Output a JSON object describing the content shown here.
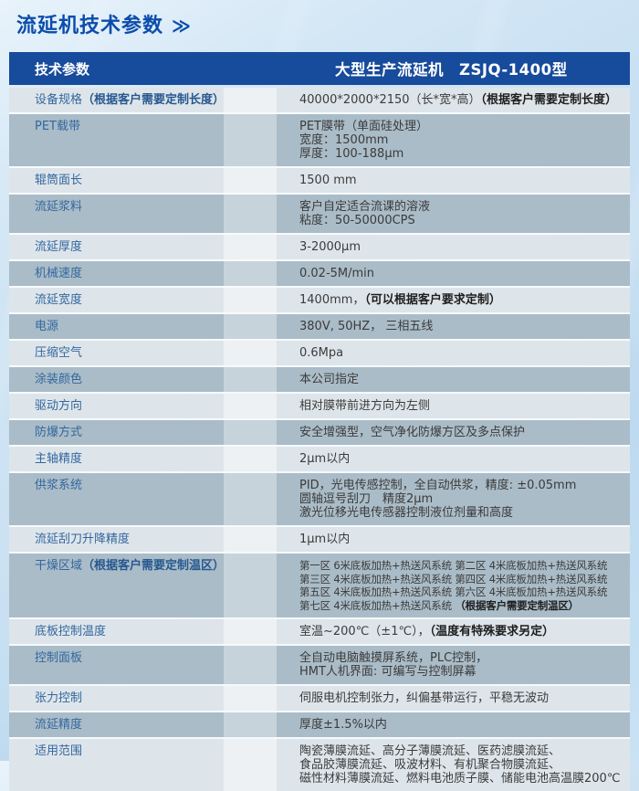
{
  "page_title": {
    "text": "流延机技术参数",
    "arrow": "≫"
  },
  "colors": {
    "header_bg": "#174b9b",
    "title_blue": "#0b4dab",
    "label_blue": "#33679f",
    "row_dark": "#aabcc7",
    "row_light": "#dee5ea",
    "page_bg": "#c6dff2"
  },
  "table": {
    "header": {
      "left": "技术参数",
      "right": "大型生产流延机　ZSJQ-1400型"
    },
    "rows": [
      {
        "label": [
          {
            "t": "设备规格",
            "b": false
          },
          {
            "t": "（根据客户需要定制长度）",
            "b": true
          }
        ],
        "value": [
          [
            {
              "t": "40000*2000*2150（长*宽*高）",
              "b": false
            },
            {
              "t": "（根据客户需要定制长度）",
              "b": true
            }
          ]
        ]
      },
      {
        "label": [
          {
            "t": "PET载带",
            "b": false
          }
        ],
        "value": [
          [
            {
              "t": "PET膜带（单面硅处理）",
              "b": false
            }
          ],
          [
            {
              "t": "宽度：1500mm",
              "b": false
            }
          ],
          [
            {
              "t": "厚度：100-188μm",
              "b": false
            }
          ]
        ]
      },
      {
        "label": [
          {
            "t": "辊筒面长",
            "b": false
          }
        ],
        "value": [
          [
            {
              "t": "1500 mm",
              "b": false
            }
          ]
        ]
      },
      {
        "label": [
          {
            "t": "流延浆料",
            "b": false
          }
        ],
        "value": [
          [
            {
              "t": "客户自定适合流课的溶液",
              "b": false
            }
          ],
          [
            {
              "t": "粘度：50-50000CPS",
              "b": false
            }
          ]
        ]
      },
      {
        "label": [
          {
            "t": "流延厚度",
            "b": false
          }
        ],
        "value": [
          [
            {
              "t": "3-2000μm",
              "b": false
            }
          ]
        ]
      },
      {
        "label": [
          {
            "t": "机械速度",
            "b": false
          }
        ],
        "value": [
          [
            {
              "t": "0.02-5M/min",
              "b": false
            }
          ]
        ]
      },
      {
        "label": [
          {
            "t": "流延宽度",
            "b": false
          }
        ],
        "value": [
          [
            {
              "t": "1400mm，",
              "b": false
            },
            {
              "t": "（可以根据客户要求定制）",
              "b": true
            }
          ]
        ]
      },
      {
        "label": [
          {
            "t": "电源",
            "b": false
          }
        ],
        "value": [
          [
            {
              "t": "380V, 50HZ， 三相五线",
              "b": false
            }
          ]
        ]
      },
      {
        "label": [
          {
            "t": "压缩空气",
            "b": false
          }
        ],
        "value": [
          [
            {
              "t": "0.6Mpa",
              "b": false
            }
          ]
        ]
      },
      {
        "label": [
          {
            "t": "涂装颜色",
            "b": false
          }
        ],
        "value": [
          [
            {
              "t": "本公司指定",
              "b": false
            }
          ]
        ]
      },
      {
        "label": [
          {
            "t": "驱动方向",
            "b": false
          }
        ],
        "value": [
          [
            {
              "t": "相对膜带前进方向为左侧",
              "b": false
            }
          ]
        ]
      },
      {
        "label": [
          {
            "t": "防爆方式",
            "b": false
          }
        ],
        "value": [
          [
            {
              "t": "安全增强型，空气净化防爆方区及多点保护",
              "b": false
            }
          ]
        ]
      },
      {
        "label": [
          {
            "t": "主轴精度",
            "b": false
          }
        ],
        "value": [
          [
            {
              "t": "2μm以内",
              "b": false
            }
          ]
        ]
      },
      {
        "label": [
          {
            "t": "供浆系统",
            "b": false
          }
        ],
        "value": [
          [
            {
              "t": "PID，光电传感控制，全自动供浆，精度: ±0.05mm",
              "b": false
            }
          ],
          [
            {
              "t": "圆轴逗号刮刀　精度2μm",
              "b": false
            }
          ],
          [
            {
              "t": "激光位移光电传感器控制液位剂量和高度",
              "b": false
            }
          ]
        ]
      },
      {
        "label": [
          {
            "t": "流延刮刀升降精度",
            "b": false
          }
        ],
        "value": [
          [
            {
              "t": "1μm以内",
              "b": false
            }
          ]
        ]
      },
      {
        "label": [
          {
            "t": "干燥区域",
            "b": false
          },
          {
            "t": "（根据客户需要定制温区）",
            "b": true
          }
        ],
        "small": true,
        "value": [
          [
            {
              "t": "第一区 6米底板加热+热送风系统  第二区 4米底板加热+热送风系统",
              "b": false
            }
          ],
          [
            {
              "t": "第三区 4米底板加热+热送风系统  第四区 4米底板加热+热送风系统",
              "b": false
            }
          ],
          [
            {
              "t": "第五区 4米底板加热+热送风系统  第六区 4米底板加热+热送风系统",
              "b": false
            }
          ],
          [
            {
              "t": "第七区 4米底板加热+热送风系统 ",
              "b": false
            },
            {
              "t": "（根据客户需要定制温区）",
              "b": true
            }
          ]
        ]
      },
      {
        "label": [
          {
            "t": "底板控制温度",
            "b": false
          }
        ],
        "value": [
          [
            {
              "t": "室温~200℃（±1℃），",
              "b": false
            },
            {
              "t": "（温度有特殊要求另定）",
              "b": true
            }
          ]
        ]
      },
      {
        "label": [
          {
            "t": "控制面板",
            "b": false
          }
        ],
        "value": [
          [
            {
              "t": "全自动电脑触摸屏系统，PLC控制，",
              "b": false
            }
          ],
          [
            {
              "t": "HMT人机界面: 可编写与控制屏幕",
              "b": false
            }
          ]
        ]
      },
      {
        "label": [
          {
            "t": "张力控制",
            "b": false
          }
        ],
        "value": [
          [
            {
              "t": "伺服电机控制张力，纠偏基带运行，平稳无波动",
              "b": false
            }
          ]
        ]
      },
      {
        "label": [
          {
            "t": "流延精度",
            "b": false
          }
        ],
        "value": [
          [
            {
              "t": "厚度±1.5%以内",
              "b": false
            }
          ]
        ]
      },
      {
        "label": [
          {
            "t": "适用范围",
            "b": false
          }
        ],
        "value": [
          [
            {
              "t": "陶瓷薄膜流延、高分子薄膜流延、医药滤膜流延、",
              "b": false
            }
          ],
          [
            {
              "t": "食品胶薄膜流延、吸波材料、有机聚合物膜流延、",
              "b": false
            }
          ],
          [
            {
              "t": "磁性材料薄膜流延、燃料电池质子膜、储能电池高温膜200℃",
              "b": false
            }
          ]
        ]
      }
    ]
  }
}
